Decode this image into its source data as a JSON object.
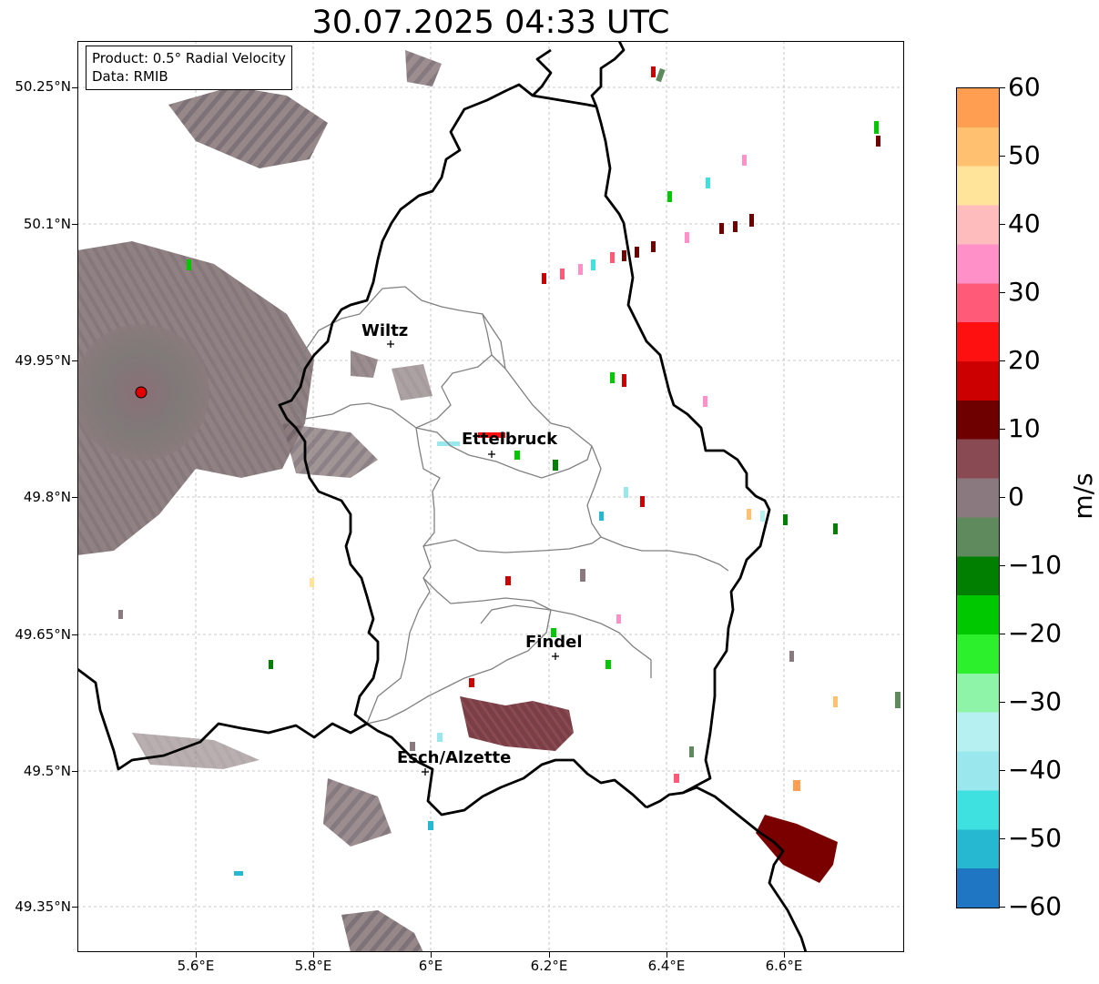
{
  "title": "30.07.2025 04:33 UTC",
  "info": {
    "product": "Product: 0.5° Radial Velocity",
    "data": "Data: RMIB"
  },
  "y_axis": {
    "labels": [
      "50.25°N",
      "50.1°N",
      "49.95°N",
      "49.8°N",
      "49.65°N",
      "49.5°N",
      "49.35°N"
    ]
  },
  "x_axis": {
    "labels": [
      "5.6°E",
      "5.8°E",
      "6°E",
      "6.2°E",
      "6.4°E",
      "6.6°E"
    ]
  },
  "cities": [
    {
      "name": "Wiltz"
    },
    {
      "name": "Ettelbruck"
    },
    {
      "name": "Findel"
    },
    {
      "name": "Esch/Alzette"
    }
  ],
  "colorbar": {
    "unit": "m/s",
    "tick_labels": [
      "60",
      "50",
      "40",
      "30",
      "20",
      "10",
      "0",
      "−10",
      "−20",
      "−30",
      "−40",
      "−50",
      "−60"
    ],
    "min": -60,
    "max": 60,
    "colors": [
      "#1f77c4",
      "#26b8d0",
      "#3ee0e0",
      "#9ae8ee",
      "#b7f0f0",
      "#8ef4a8",
      "#2cf02c",
      "#00c800",
      "#007f00",
      "#5e8a5e",
      "#8a7a80",
      "#8a4a54",
      "#6e0000",
      "#cc0000",
      "#ff1010",
      "#ff5a78",
      "#ff90c8",
      "#ffbcbc",
      "#ffe49a",
      "#ffc070",
      "#ff9e50"
    ]
  },
  "radar_site_color": "#e00000"
}
